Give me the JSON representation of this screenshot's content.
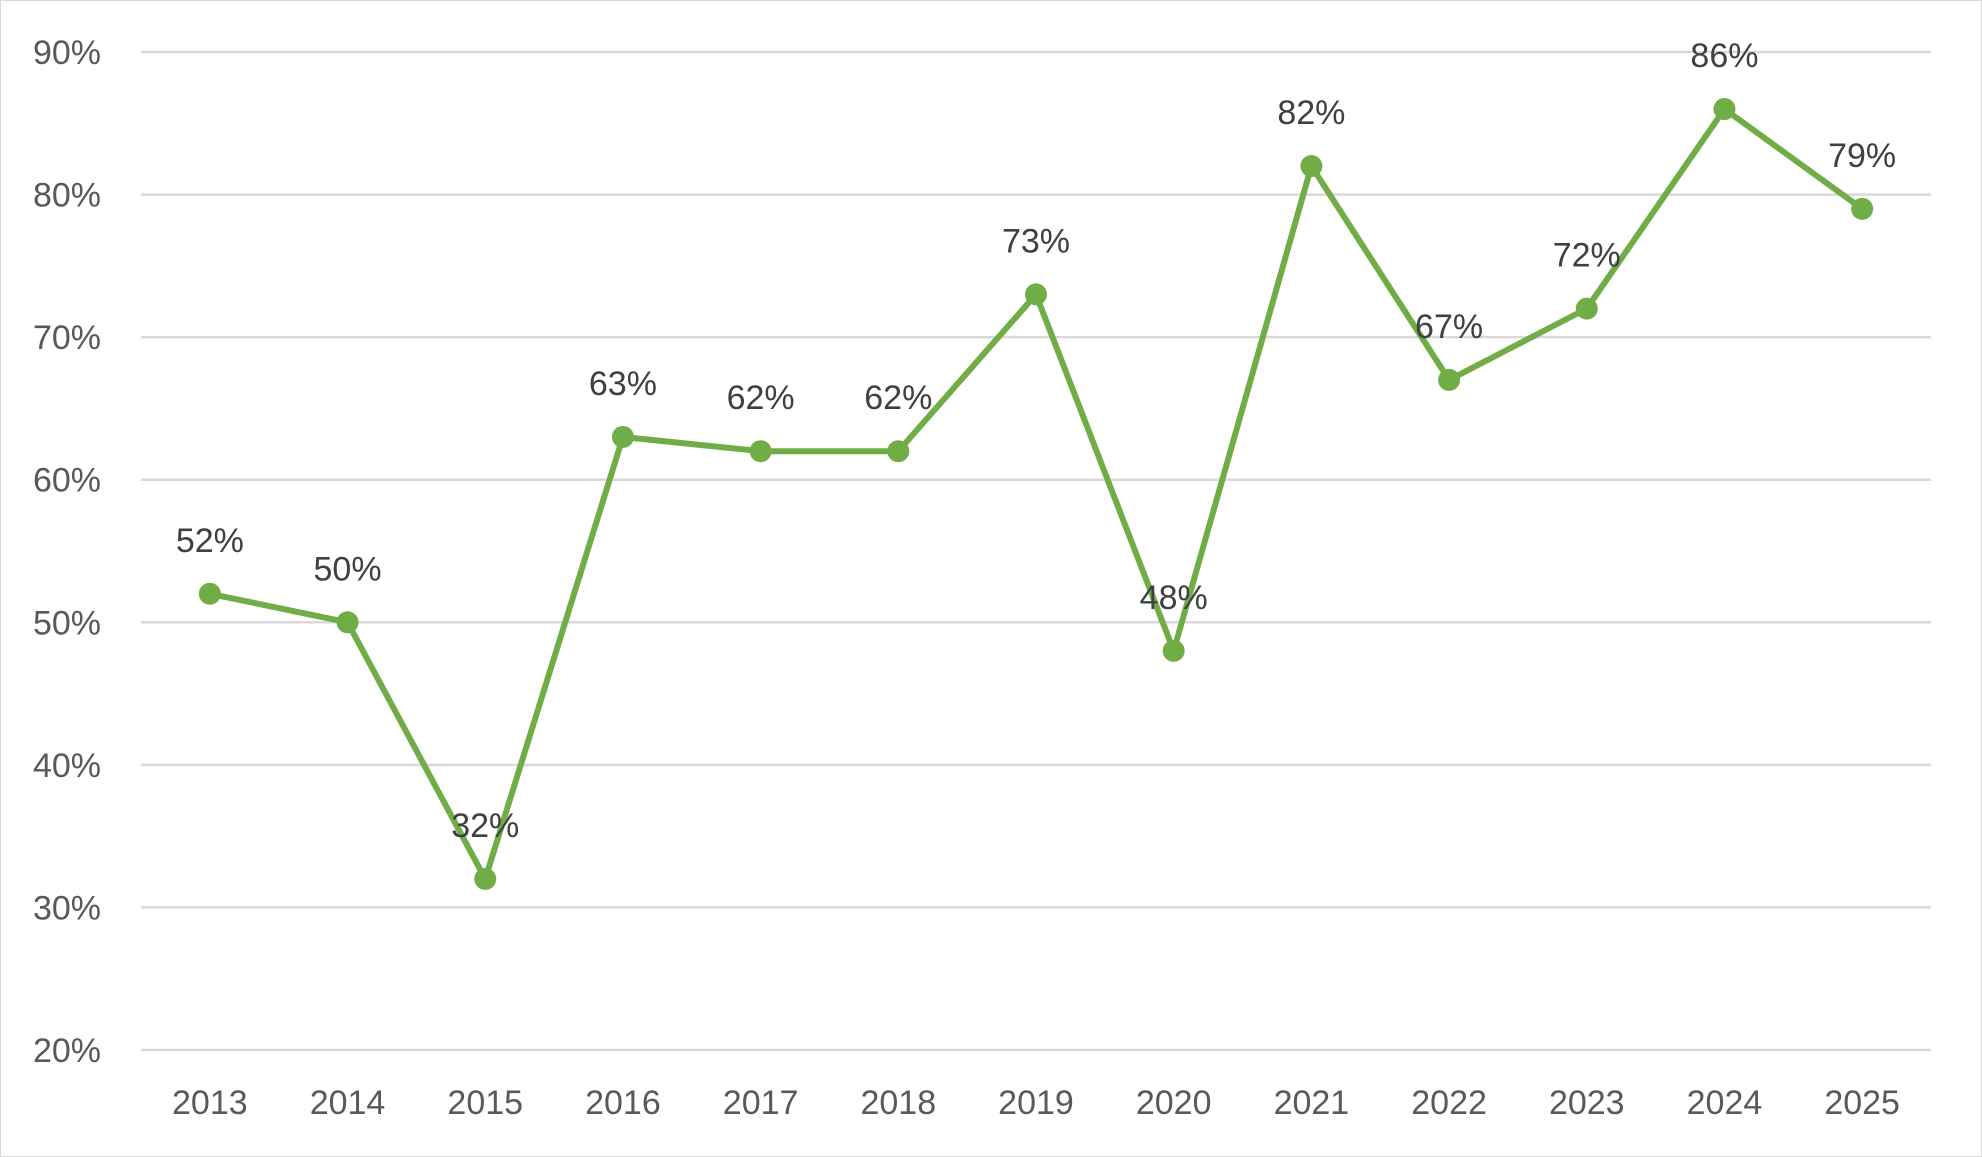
{
  "chart_data": {
    "type": "line",
    "title": "",
    "xlabel": "",
    "ylabel": "",
    "ylim": [
      20,
      90
    ],
    "y_ticks": [
      20,
      30,
      40,
      50,
      60,
      70,
      80,
      90
    ],
    "y_tick_labels": [
      "20%",
      "30%",
      "40%",
      "50%",
      "60%",
      "70%",
      "80%",
      "90%"
    ],
    "categories": [
      "2013",
      "2014",
      "2015",
      "2016",
      "2017",
      "2018",
      "2019",
      "2020",
      "2021",
      "2022",
      "2023",
      "2024",
      "2025"
    ],
    "series": [
      {
        "values": [
          52,
          50,
          32,
          63,
          62,
          62,
          73,
          48,
          82,
          67,
          72,
          86,
          79
        ],
        "labels": [
          "52%",
          "50%",
          "32%",
          "63%",
          "62%",
          "62%",
          "73%",
          "48%",
          "82%",
          "67%",
          "72%",
          "86%",
          "79%"
        ],
        "color": "#70ad47"
      }
    ],
    "grid": true,
    "gridline_color": "#d9d9d9",
    "legend": "none"
  }
}
